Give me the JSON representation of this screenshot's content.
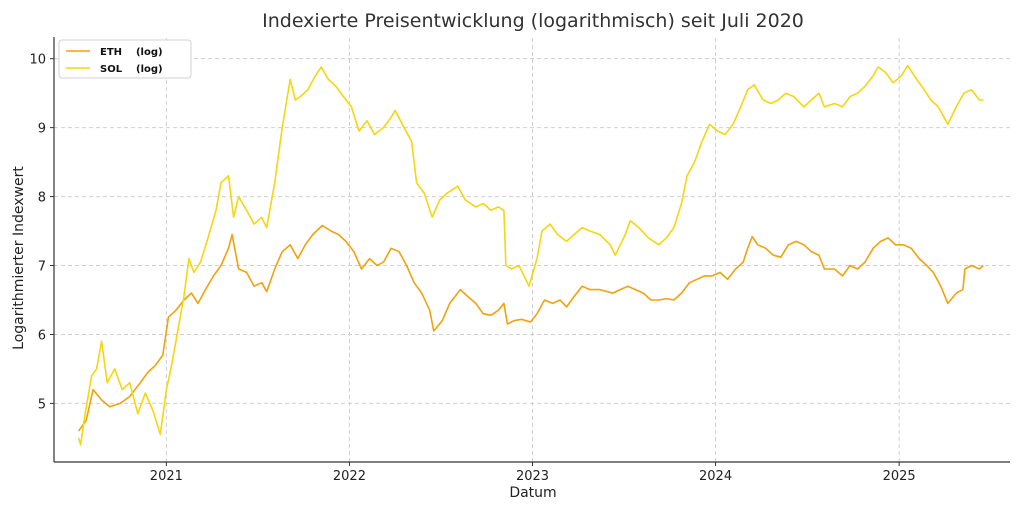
{
  "chart_data": {
    "type": "line",
    "title": "Indexierte Preisentwicklung (logarithmisch) seit Juli 2020",
    "xlabel": "Datum",
    "ylabel": "Logarithmierter Indexwert",
    "x_ticks": [
      "2021",
      "2022",
      "2023",
      "2024",
      "2025"
    ],
    "y_ticks": [
      "5",
      "6",
      "7",
      "8",
      "9",
      "10"
    ],
    "xlim": [
      "2020-05-22",
      "2025-08-10"
    ],
    "ylim": [
      4.15,
      10.3
    ],
    "grid": true,
    "legend_position": "top-left",
    "series": [
      {
        "name": "ETH    (log)",
        "color": "#f2a20c",
        "points": [
          [
            "2020-07-10",
            4.6
          ],
          [
            "2020-07-25",
            4.75
          ],
          [
            "2020-08-08",
            5.2
          ],
          [
            "2020-08-25",
            5.05
          ],
          [
            "2020-09-10",
            4.95
          ],
          [
            "2020-10-01",
            5.0
          ],
          [
            "2020-10-20",
            5.1
          ],
          [
            "2020-11-10",
            5.3
          ],
          [
            "2020-11-25",
            5.45
          ],
          [
            "2020-12-10",
            5.55
          ],
          [
            "2020-12-25",
            5.7
          ],
          [
            "2021-01-05",
            6.25
          ],
          [
            "2021-01-20",
            6.35
          ],
          [
            "2021-02-05",
            6.5
          ],
          [
            "2021-02-20",
            6.6
          ],
          [
            "2021-03-05",
            6.45
          ],
          [
            "2021-03-20",
            6.65
          ],
          [
            "2021-04-05",
            6.85
          ],
          [
            "2021-04-20",
            7.0
          ],
          [
            "2021-05-05",
            7.25
          ],
          [
            "2021-05-12",
            7.45
          ],
          [
            "2021-05-25",
            6.95
          ],
          [
            "2021-06-10",
            6.9
          ],
          [
            "2021-06-25",
            6.7
          ],
          [
            "2021-07-10",
            6.75
          ],
          [
            "2021-07-20",
            6.62
          ],
          [
            "2021-08-05",
            6.95
          ],
          [
            "2021-08-20",
            7.2
          ],
          [
            "2021-09-05",
            7.3
          ],
          [
            "2021-09-20",
            7.1
          ],
          [
            "2021-10-05",
            7.3
          ],
          [
            "2021-10-20",
            7.45
          ],
          [
            "2021-11-08",
            7.58
          ],
          [
            "2021-11-25",
            7.5
          ],
          [
            "2021-12-10",
            7.45
          ],
          [
            "2021-12-25",
            7.35
          ],
          [
            "2022-01-10",
            7.2
          ],
          [
            "2022-01-25",
            6.95
          ],
          [
            "2022-02-10",
            7.1
          ],
          [
            "2022-02-25",
            7.0
          ],
          [
            "2022-03-10",
            7.05
          ],
          [
            "2022-03-25",
            7.25
          ],
          [
            "2022-04-10",
            7.2
          ],
          [
            "2022-04-25",
            7.0
          ],
          [
            "2022-05-10",
            6.75
          ],
          [
            "2022-05-25",
            6.6
          ],
          [
            "2022-06-10",
            6.35
          ],
          [
            "2022-06-18",
            6.05
          ],
          [
            "2022-07-05",
            6.2
          ],
          [
            "2022-07-20",
            6.45
          ],
          [
            "2022-08-10",
            6.65
          ],
          [
            "2022-08-25",
            6.55
          ],
          [
            "2022-09-10",
            6.45
          ],
          [
            "2022-09-25",
            6.3
          ],
          [
            "2022-10-10",
            6.28
          ],
          [
            "2022-10-25",
            6.35
          ],
          [
            "2022-11-05",
            6.45
          ],
          [
            "2022-11-12",
            6.15
          ],
          [
            "2022-11-25",
            6.2
          ],
          [
            "2022-12-10",
            6.22
          ],
          [
            "2022-12-28",
            6.18
          ],
          [
            "2023-01-10",
            6.3
          ],
          [
            "2023-01-25",
            6.5
          ],
          [
            "2023-02-10",
            6.45
          ],
          [
            "2023-02-25",
            6.5
          ],
          [
            "2023-03-10",
            6.4
          ],
          [
            "2023-03-25",
            6.55
          ],
          [
            "2023-04-10",
            6.7
          ],
          [
            "2023-04-25",
            6.65
          ],
          [
            "2023-05-15",
            6.65
          ],
          [
            "2023-06-10",
            6.6
          ],
          [
            "2023-06-25",
            6.65
          ],
          [
            "2023-07-10",
            6.7
          ],
          [
            "2023-07-25",
            6.65
          ],
          [
            "2023-08-10",
            6.6
          ],
          [
            "2023-08-25",
            6.5
          ],
          [
            "2023-09-10",
            6.5
          ],
          [
            "2023-09-25",
            6.52
          ],
          [
            "2023-10-10",
            6.5
          ],
          [
            "2023-10-25",
            6.6
          ],
          [
            "2023-11-10",
            6.75
          ],
          [
            "2023-11-25",
            6.8
          ],
          [
            "2023-12-10",
            6.85
          ],
          [
            "2023-12-25",
            6.85
          ],
          [
            "2024-01-10",
            6.9
          ],
          [
            "2024-01-25",
            6.8
          ],
          [
            "2024-02-10",
            6.95
          ],
          [
            "2024-02-25",
            7.05
          ],
          [
            "2024-03-05",
            7.25
          ],
          [
            "2024-03-14",
            7.42
          ],
          [
            "2024-03-25",
            7.3
          ],
          [
            "2024-04-10",
            7.25
          ],
          [
            "2024-04-25",
            7.15
          ],
          [
            "2024-05-10",
            7.12
          ],
          [
            "2024-05-25",
            7.3
          ],
          [
            "2024-06-10",
            7.35
          ],
          [
            "2024-06-25",
            7.3
          ],
          [
            "2024-07-10",
            7.2
          ],
          [
            "2024-07-25",
            7.15
          ],
          [
            "2024-08-05",
            6.95
          ],
          [
            "2024-08-25",
            6.95
          ],
          [
            "2024-09-10",
            6.85
          ],
          [
            "2024-09-25",
            7.0
          ],
          [
            "2024-10-10",
            6.95
          ],
          [
            "2024-10-25",
            7.05
          ],
          [
            "2024-11-10",
            7.25
          ],
          [
            "2024-11-25",
            7.35
          ],
          [
            "2024-12-10",
            7.4
          ],
          [
            "2024-12-25",
            7.3
          ],
          [
            "2025-01-10",
            7.3
          ],
          [
            "2025-01-25",
            7.25
          ],
          [
            "2025-02-10",
            7.1
          ],
          [
            "2025-02-25",
            7.0
          ],
          [
            "2025-03-10",
            6.9
          ],
          [
            "2025-03-25",
            6.7
          ],
          [
            "2025-04-08",
            6.45
          ],
          [
            "2025-04-25",
            6.6
          ],
          [
            "2025-05-08",
            6.65
          ],
          [
            "2025-05-12",
            6.95
          ],
          [
            "2025-05-25",
            7.0
          ],
          [
            "2025-06-10",
            6.95
          ],
          [
            "2025-06-18",
            7.0
          ]
        ]
      },
      {
        "name": "SOL    (log)",
        "color": "#f5d60f",
        "points": [
          [
            "2020-07-10",
            4.5
          ],
          [
            "2020-07-14",
            4.4
          ],
          [
            "2020-07-22",
            4.8
          ],
          [
            "2020-08-05",
            5.4
          ],
          [
            "2020-08-15",
            5.5
          ],
          [
            "2020-08-25",
            5.9
          ],
          [
            "2020-09-05",
            5.3
          ],
          [
            "2020-09-20",
            5.5
          ],
          [
            "2020-10-05",
            5.2
          ],
          [
            "2020-10-20",
            5.3
          ],
          [
            "2020-11-05",
            4.85
          ],
          [
            "2020-11-20",
            5.15
          ],
          [
            "2020-12-05",
            4.9
          ],
          [
            "2020-12-20",
            4.55
          ],
          [
            "2021-01-01",
            5.2
          ],
          [
            "2021-01-10",
            5.5
          ],
          [
            "2021-01-20",
            5.9
          ],
          [
            "2021-02-05",
            6.55
          ],
          [
            "2021-02-15",
            7.1
          ],
          [
            "2021-02-25",
            6.9
          ],
          [
            "2021-03-10",
            7.05
          ],
          [
            "2021-03-25",
            7.4
          ],
          [
            "2021-04-10",
            7.8
          ],
          [
            "2021-04-20",
            8.2
          ],
          [
            "2021-05-05",
            8.3
          ],
          [
            "2021-05-15",
            7.7
          ],
          [
            "2021-05-25",
            8.0
          ],
          [
            "2021-06-10",
            7.8
          ],
          [
            "2021-06-25",
            7.6
          ],
          [
            "2021-07-10",
            7.7
          ],
          [
            "2021-07-20",
            7.55
          ],
          [
            "2021-08-05",
            8.2
          ],
          [
            "2021-08-20",
            9.0
          ],
          [
            "2021-09-05",
            9.7
          ],
          [
            "2021-09-15",
            9.4
          ],
          [
            "2021-09-25",
            9.45
          ],
          [
            "2021-10-10",
            9.55
          ],
          [
            "2021-10-25",
            9.75
          ],
          [
            "2021-11-06",
            9.88
          ],
          [
            "2021-11-20",
            9.7
          ],
          [
            "2021-12-05",
            9.6
          ],
          [
            "2021-12-20",
            9.45
          ],
          [
            "2022-01-05",
            9.3
          ],
          [
            "2022-01-20",
            8.95
          ],
          [
            "2022-02-05",
            9.1
          ],
          [
            "2022-02-20",
            8.9
          ],
          [
            "2022-03-10",
            9.0
          ],
          [
            "2022-03-25",
            9.15
          ],
          [
            "2022-04-02",
            9.25
          ],
          [
            "2022-04-20",
            9.0
          ],
          [
            "2022-05-05",
            8.8
          ],
          [
            "2022-05-15",
            8.2
          ],
          [
            "2022-05-30",
            8.05
          ],
          [
            "2022-06-15",
            7.7
          ],
          [
            "2022-06-30",
            7.95
          ],
          [
            "2022-07-15",
            8.05
          ],
          [
            "2022-08-05",
            8.15
          ],
          [
            "2022-08-20",
            7.95
          ],
          [
            "2022-09-10",
            7.85
          ],
          [
            "2022-09-25",
            7.9
          ],
          [
            "2022-10-10",
            7.8
          ],
          [
            "2022-10-25",
            7.85
          ],
          [
            "2022-11-05",
            7.8
          ],
          [
            "2022-11-09",
            7.0
          ],
          [
            "2022-11-20",
            6.95
          ],
          [
            "2022-12-05",
            7.0
          ],
          [
            "2022-12-25",
            6.7
          ],
          [
            "2023-01-10",
            7.1
          ],
          [
            "2023-01-20",
            7.5
          ],
          [
            "2023-02-05",
            7.6
          ],
          [
            "2023-02-20",
            7.45
          ],
          [
            "2023-03-10",
            7.35
          ],
          [
            "2023-03-25",
            7.45
          ],
          [
            "2023-04-10",
            7.55
          ],
          [
            "2023-04-25",
            7.5
          ],
          [
            "2023-05-15",
            7.45
          ],
          [
            "2023-06-05",
            7.3
          ],
          [
            "2023-06-15",
            7.15
          ],
          [
            "2023-07-05",
            7.45
          ],
          [
            "2023-07-15",
            7.65
          ],
          [
            "2023-08-01",
            7.55
          ],
          [
            "2023-08-20",
            7.4
          ],
          [
            "2023-09-10",
            7.3
          ],
          [
            "2023-09-25",
            7.4
          ],
          [
            "2023-10-10",
            7.55
          ],
          [
            "2023-10-25",
            7.9
          ],
          [
            "2023-11-05",
            8.3
          ],
          [
            "2023-11-20",
            8.5
          ],
          [
            "2023-12-05",
            8.8
          ],
          [
            "2023-12-20",
            9.05
          ],
          [
            "2024-01-05",
            8.95
          ],
          [
            "2024-01-20",
            8.9
          ],
          [
            "2024-02-05",
            9.05
          ],
          [
            "2024-02-20",
            9.3
          ],
          [
            "2024-03-05",
            9.55
          ],
          [
            "2024-03-18",
            9.62
          ],
          [
            "2024-04-05",
            9.4
          ],
          [
            "2024-04-20",
            9.35
          ],
          [
            "2024-05-05",
            9.4
          ],
          [
            "2024-05-20",
            9.5
          ],
          [
            "2024-06-05",
            9.45
          ],
          [
            "2024-06-25",
            9.3
          ],
          [
            "2024-07-10",
            9.4
          ],
          [
            "2024-07-25",
            9.5
          ],
          [
            "2024-08-05",
            9.3
          ],
          [
            "2024-08-25",
            9.35
          ],
          [
            "2024-09-10",
            9.3
          ],
          [
            "2024-09-25",
            9.45
          ],
          [
            "2024-10-10",
            9.5
          ],
          [
            "2024-10-25",
            9.6
          ],
          [
            "2024-11-10",
            9.75
          ],
          [
            "2024-11-20",
            9.88
          ],
          [
            "2024-12-05",
            9.8
          ],
          [
            "2024-12-20",
            9.65
          ],
          [
            "2025-01-05",
            9.75
          ],
          [
            "2025-01-18",
            9.9
          ],
          [
            "2025-02-05",
            9.7
          ],
          [
            "2025-02-20",
            9.55
          ],
          [
            "2025-03-05",
            9.4
          ],
          [
            "2025-03-20",
            9.3
          ],
          [
            "2025-04-08",
            9.05
          ],
          [
            "2025-04-25",
            9.3
          ],
          [
            "2025-05-10",
            9.5
          ],
          [
            "2025-05-25",
            9.55
          ],
          [
            "2025-06-10",
            9.4
          ],
          [
            "2025-06-18",
            9.4
          ]
        ]
      }
    ]
  }
}
